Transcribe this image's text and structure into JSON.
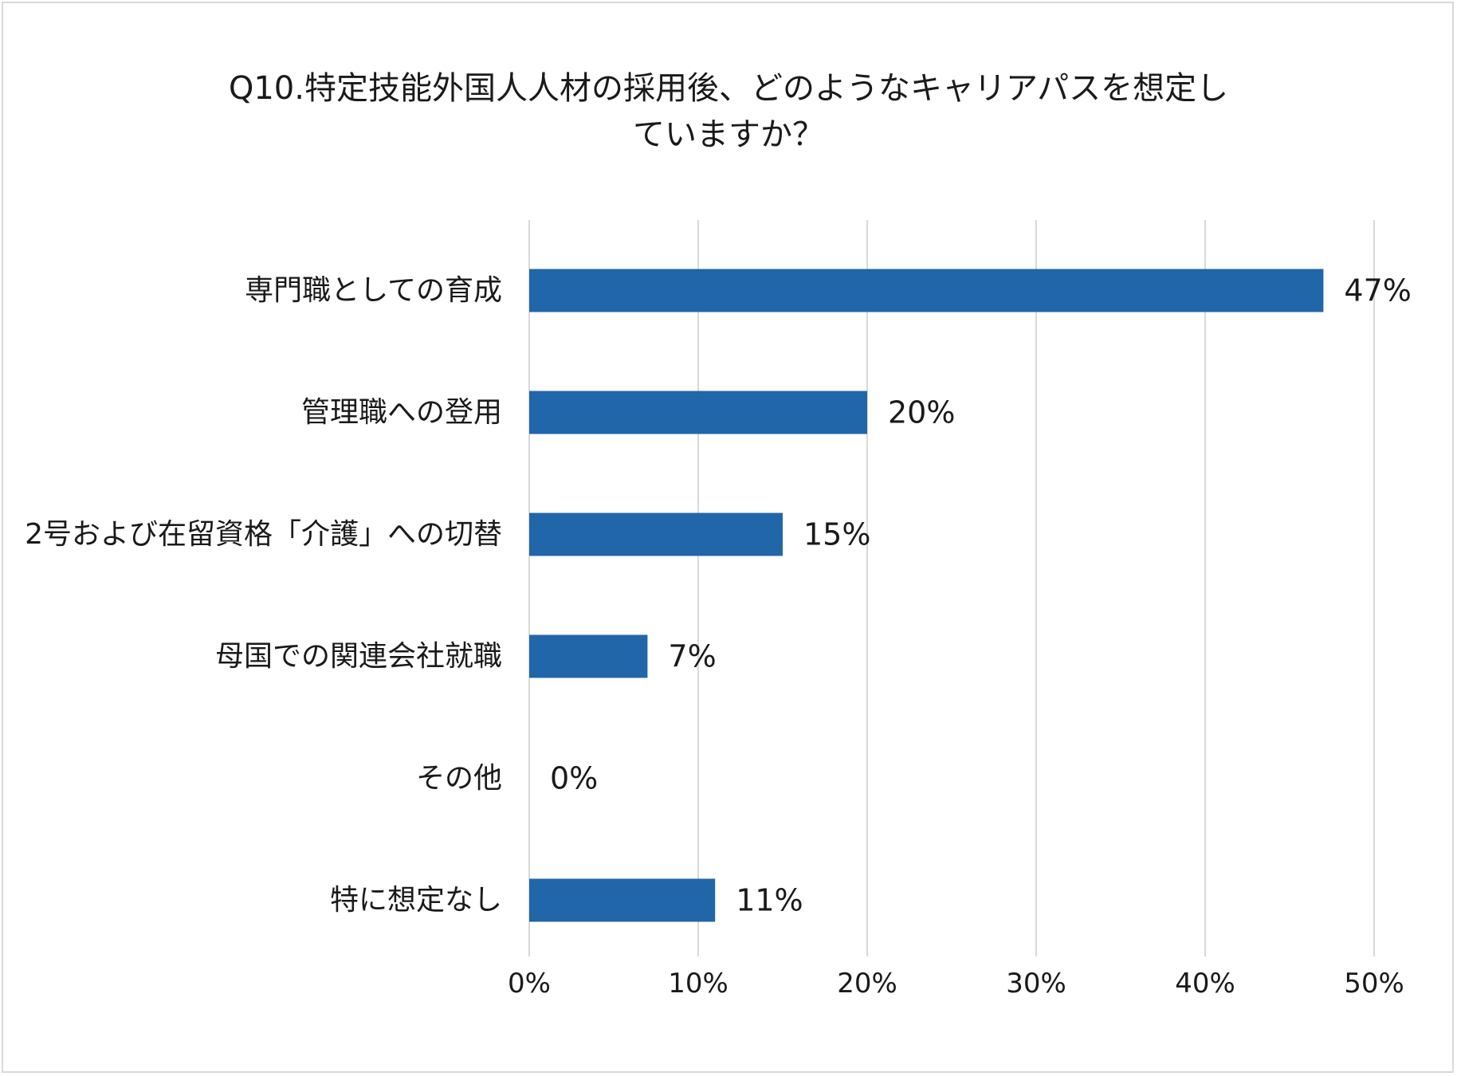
{
  "chart_data": {
    "type": "bar",
    "orientation": "horizontal",
    "title_lines": [
      "Q10.特定技能外国人人材の採用後、どのようなキャリアパスを想定し",
      "ていますか？"
    ],
    "categories": [
      "専門職としての育成",
      "管理職への登用",
      "2号および在留資格「介護」への切替",
      "母国での関連会社就職",
      "その他",
      "特に想定なし"
    ],
    "values": [
      47,
      20,
      15,
      7,
      0,
      11
    ],
    "value_labels": [
      "47%",
      "20%",
      "15%",
      "7%",
      "0%",
      "11%"
    ],
    "xlim": [
      0,
      50
    ],
    "xticks": [
      0,
      10,
      20,
      30,
      40,
      50
    ],
    "xtick_labels": [
      "0%",
      "10%",
      "20%",
      "30%",
      "40%",
      "50%"
    ],
    "grid": true,
    "legend": "none",
    "bar_color": "#2166a8",
    "grid_color": "#d9d9d9"
  }
}
